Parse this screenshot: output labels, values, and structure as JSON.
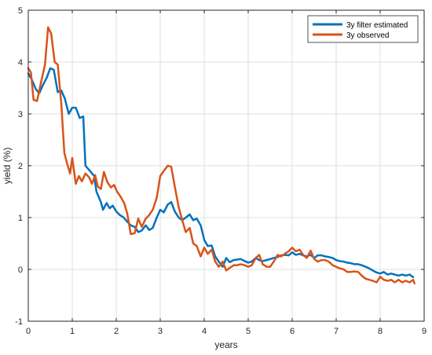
{
  "chart_data": {
    "type": "line",
    "xlabel": "years",
    "ylabel": "yield (%)",
    "xlim": [
      0,
      9
    ],
    "ylim": [
      -1,
      5
    ],
    "xticks": [
      0,
      1,
      2,
      3,
      4,
      5,
      6,
      7,
      8,
      9
    ],
    "yticks": [
      -1,
      0,
      1,
      2,
      3,
      4,
      5
    ],
    "grid": true,
    "legend_position": "top-right",
    "series": [
      {
        "name": "3y filter estimated",
        "color": "#0072BD",
        "points": [
          [
            0.0,
            3.78
          ],
          [
            0.08,
            3.66
          ],
          [
            0.17,
            3.48
          ],
          [
            0.25,
            3.4
          ],
          [
            0.33,
            3.55
          ],
          [
            0.42,
            3.7
          ],
          [
            0.5,
            3.88
          ],
          [
            0.58,
            3.85
          ],
          [
            0.67,
            3.42
          ],
          [
            0.75,
            3.45
          ],
          [
            0.83,
            3.3
          ],
          [
            0.92,
            3.0
          ],
          [
            1.0,
            3.12
          ],
          [
            1.08,
            3.12
          ],
          [
            1.17,
            2.92
          ],
          [
            1.25,
            2.95
          ],
          [
            1.3,
            2.0
          ],
          [
            1.4,
            1.9
          ],
          [
            1.5,
            1.8
          ],
          [
            1.55,
            1.5
          ],
          [
            1.65,
            1.3
          ],
          [
            1.7,
            1.15
          ],
          [
            1.78,
            1.28
          ],
          [
            1.85,
            1.18
          ],
          [
            1.92,
            1.23
          ],
          [
            2.0,
            1.12
          ],
          [
            2.08,
            1.05
          ],
          [
            2.17,
            1.0
          ],
          [
            2.25,
            0.92
          ],
          [
            2.33,
            0.85
          ],
          [
            2.42,
            0.82
          ],
          [
            2.5,
            0.72
          ],
          [
            2.58,
            0.75
          ],
          [
            2.67,
            0.85
          ],
          [
            2.75,
            0.76
          ],
          [
            2.83,
            0.8
          ],
          [
            2.92,
            1.0
          ],
          [
            3.0,
            1.15
          ],
          [
            3.08,
            1.1
          ],
          [
            3.17,
            1.25
          ],
          [
            3.25,
            1.3
          ],
          [
            3.33,
            1.12
          ],
          [
            3.42,
            1.0
          ],
          [
            3.5,
            0.95
          ],
          [
            3.58,
            1.0
          ],
          [
            3.67,
            1.06
          ],
          [
            3.75,
            0.95
          ],
          [
            3.83,
            0.98
          ],
          [
            3.92,
            0.85
          ],
          [
            4.0,
            0.57
          ],
          [
            4.08,
            0.45
          ],
          [
            4.17,
            0.46
          ],
          [
            4.25,
            0.25
          ],
          [
            4.33,
            0.15
          ],
          [
            4.42,
            0.05
          ],
          [
            4.5,
            0.22
          ],
          [
            4.58,
            0.14
          ],
          [
            4.67,
            0.18
          ],
          [
            4.75,
            0.19
          ],
          [
            4.83,
            0.2
          ],
          [
            4.92,
            0.16
          ],
          [
            5.0,
            0.13
          ],
          [
            5.08,
            0.15
          ],
          [
            5.17,
            0.22
          ],
          [
            5.25,
            0.18
          ],
          [
            5.33,
            0.16
          ],
          [
            5.42,
            0.18
          ],
          [
            5.5,
            0.2
          ],
          [
            5.58,
            0.22
          ],
          [
            5.67,
            0.24
          ],
          [
            5.75,
            0.27
          ],
          [
            5.83,
            0.28
          ],
          [
            5.92,
            0.27
          ],
          [
            6.0,
            0.33
          ],
          [
            6.08,
            0.28
          ],
          [
            6.17,
            0.3
          ],
          [
            6.25,
            0.27
          ],
          [
            6.33,
            0.25
          ],
          [
            6.42,
            0.28
          ],
          [
            6.5,
            0.22
          ],
          [
            6.58,
            0.27
          ],
          [
            6.67,
            0.27
          ],
          [
            6.75,
            0.25
          ],
          [
            6.83,
            0.24
          ],
          [
            6.92,
            0.22
          ],
          [
            7.0,
            0.18
          ],
          [
            7.08,
            0.16
          ],
          [
            7.17,
            0.15
          ],
          [
            7.25,
            0.13
          ],
          [
            7.33,
            0.12
          ],
          [
            7.42,
            0.1
          ],
          [
            7.5,
            0.1
          ],
          [
            7.58,
            0.08
          ],
          [
            7.67,
            0.05
          ],
          [
            7.75,
            0.02
          ],
          [
            7.83,
            -0.02
          ],
          [
            7.92,
            -0.06
          ],
          [
            8.0,
            -0.08
          ],
          [
            8.08,
            -0.05
          ],
          [
            8.17,
            -0.1
          ],
          [
            8.25,
            -0.08
          ],
          [
            8.33,
            -0.1
          ],
          [
            8.42,
            -0.12
          ],
          [
            8.5,
            -0.1
          ],
          [
            8.58,
            -0.12
          ],
          [
            8.67,
            -0.1
          ],
          [
            8.75,
            -0.15
          ]
        ]
      },
      {
        "name": "3y observed",
        "color": "#D95319",
        "points": [
          [
            0.0,
            3.88
          ],
          [
            0.06,
            3.8
          ],
          [
            0.12,
            3.27
          ],
          [
            0.2,
            3.25
          ],
          [
            0.3,
            3.65
          ],
          [
            0.38,
            3.95
          ],
          [
            0.45,
            4.67
          ],
          [
            0.52,
            4.55
          ],
          [
            0.6,
            4.0
          ],
          [
            0.67,
            3.95
          ],
          [
            0.75,
            3.2
          ],
          [
            0.82,
            2.25
          ],
          [
            0.88,
            2.05
          ],
          [
            0.95,
            1.85
          ],
          [
            1.0,
            2.15
          ],
          [
            1.08,
            1.65
          ],
          [
            1.15,
            1.8
          ],
          [
            1.22,
            1.7
          ],
          [
            1.3,
            1.85
          ],
          [
            1.38,
            1.78
          ],
          [
            1.45,
            1.65
          ],
          [
            1.52,
            1.82
          ],
          [
            1.58,
            1.6
          ],
          [
            1.65,
            1.55
          ],
          [
            1.72,
            1.88
          ],
          [
            1.8,
            1.68
          ],
          [
            1.88,
            1.58
          ],
          [
            1.95,
            1.63
          ],
          [
            2.02,
            1.5
          ],
          [
            2.1,
            1.4
          ],
          [
            2.18,
            1.28
          ],
          [
            2.25,
            1.08
          ],
          [
            2.33,
            0.68
          ],
          [
            2.42,
            0.7
          ],
          [
            2.5,
            0.98
          ],
          [
            2.58,
            0.82
          ],
          [
            2.67,
            0.98
          ],
          [
            2.75,
            1.05
          ],
          [
            2.83,
            1.15
          ],
          [
            2.92,
            1.38
          ],
          [
            3.0,
            1.8
          ],
          [
            3.08,
            1.9
          ],
          [
            3.17,
            2.0
          ],
          [
            3.25,
            1.98
          ],
          [
            3.33,
            1.6
          ],
          [
            3.42,
            1.2
          ],
          [
            3.5,
            0.95
          ],
          [
            3.58,
            0.72
          ],
          [
            3.67,
            0.8
          ],
          [
            3.75,
            0.5
          ],
          [
            3.83,
            0.45
          ],
          [
            3.92,
            0.25
          ],
          [
            4.0,
            0.42
          ],
          [
            4.08,
            0.3
          ],
          [
            4.17,
            0.38
          ],
          [
            4.25,
            0.15
          ],
          [
            4.33,
            0.05
          ],
          [
            4.42,
            0.15
          ],
          [
            4.5,
            -0.02
          ],
          [
            4.58,
            0.03
          ],
          [
            4.67,
            0.08
          ],
          [
            4.75,
            0.08
          ],
          [
            4.83,
            0.1
          ],
          [
            4.92,
            0.08
          ],
          [
            5.0,
            0.05
          ],
          [
            5.08,
            0.08
          ],
          [
            5.17,
            0.22
          ],
          [
            5.25,
            0.28
          ],
          [
            5.33,
            0.1
          ],
          [
            5.42,
            0.05
          ],
          [
            5.5,
            0.05
          ],
          [
            5.58,
            0.15
          ],
          [
            5.67,
            0.28
          ],
          [
            5.75,
            0.25
          ],
          [
            5.83,
            0.3
          ],
          [
            5.92,
            0.35
          ],
          [
            6.0,
            0.42
          ],
          [
            6.08,
            0.35
          ],
          [
            6.17,
            0.38
          ],
          [
            6.25,
            0.28
          ],
          [
            6.33,
            0.22
          ],
          [
            6.42,
            0.36
          ],
          [
            6.5,
            0.2
          ],
          [
            6.58,
            0.15
          ],
          [
            6.67,
            0.18
          ],
          [
            6.75,
            0.18
          ],
          [
            6.83,
            0.15
          ],
          [
            6.92,
            0.08
          ],
          [
            7.0,
            0.05
          ],
          [
            7.08,
            0.02
          ],
          [
            7.17,
            0.0
          ],
          [
            7.25,
            -0.05
          ],
          [
            7.33,
            -0.05
          ],
          [
            7.42,
            -0.04
          ],
          [
            7.5,
            -0.05
          ],
          [
            7.58,
            -0.12
          ],
          [
            7.67,
            -0.18
          ],
          [
            7.75,
            -0.2
          ],
          [
            7.83,
            -0.22
          ],
          [
            7.92,
            -0.25
          ],
          [
            8.0,
            -0.14
          ],
          [
            8.08,
            -0.2
          ],
          [
            8.17,
            -0.22
          ],
          [
            8.25,
            -0.2
          ],
          [
            8.33,
            -0.25
          ],
          [
            8.42,
            -0.2
          ],
          [
            8.5,
            -0.25
          ],
          [
            8.58,
            -0.22
          ],
          [
            8.67,
            -0.25
          ],
          [
            8.75,
            -0.2
          ],
          [
            8.78,
            -0.27
          ]
        ]
      }
    ]
  }
}
